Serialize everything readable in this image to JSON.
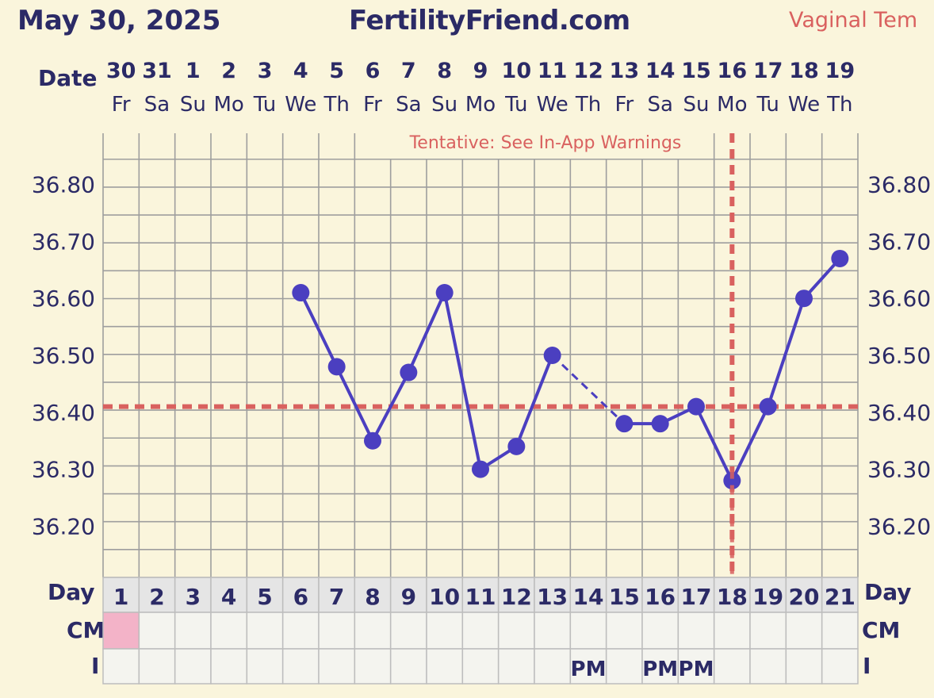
{
  "header": {
    "date": "May 30, 2025",
    "site": "FertilityFriend.com",
    "temp_type": "Vaginal Tem"
  },
  "labels": {
    "date": "Date",
    "day": "Day",
    "cm": "CM",
    "intercourse": "I"
  },
  "colors": {
    "line": "#4b3fc0",
    "coverline": "#d9615f",
    "cm_pink": "#f3b3c8",
    "grid": "#9e9e9e"
  },
  "chart_data": {
    "type": "line",
    "tentative_note": "Tentative: See In-App Warnings",
    "dates": [
      "30",
      "31",
      "1",
      "2",
      "3",
      "4",
      "5",
      "6",
      "7",
      "8",
      "9",
      "10",
      "11",
      "12",
      "13",
      "14",
      "15",
      "16",
      "17",
      "18",
      "19"
    ],
    "weekdays": [
      "Fr",
      "Sa",
      "Su",
      "Mo",
      "Tu",
      "We",
      "Th",
      "Fr",
      "Sa",
      "Su",
      "Mo",
      "Tu",
      "We",
      "Th",
      "Fr",
      "Sa",
      "Su",
      "Mo",
      "Tu",
      "We",
      "Th"
    ],
    "cycle_days": [
      "1",
      "2",
      "3",
      "4",
      "5",
      "6",
      "7",
      "8",
      "9",
      "10",
      "11",
      "12",
      "13",
      "14",
      "15",
      "16",
      "17",
      "18",
      "19",
      "20",
      "21"
    ],
    "y_ticks": [
      "36.80",
      "36.70",
      "36.60",
      "36.50",
      "36.40",
      "36.30",
      "36.20"
    ],
    "ylim": [
      36.11,
      36.89
    ],
    "series": [
      {
        "values": [
          null,
          null,
          null,
          null,
          null,
          36.61,
          36.48,
          36.35,
          36.47,
          36.61,
          36.3,
          36.34,
          36.5,
          null,
          36.38,
          36.38,
          36.41,
          36.28,
          36.41,
          36.6,
          36.67
        ]
      }
    ],
    "dashed_segments": [
      [
        13,
        15
      ]
    ],
    "coverline": 36.41,
    "ovulation_day": 18,
    "cm": [
      "pink",
      "",
      "",
      "",
      "",
      "",
      "",
      "",
      "",
      "",
      "",
      "",
      "",
      "",
      "",
      "",
      "",
      "",
      "",
      "",
      ""
    ],
    "intercourse": [
      "",
      "",
      "",
      "",
      "",
      "",
      "",
      "",
      "",
      "",
      "",
      "",
      "",
      "PM",
      "",
      "PM",
      "PM",
      "",
      "",
      "",
      ""
    ]
  }
}
